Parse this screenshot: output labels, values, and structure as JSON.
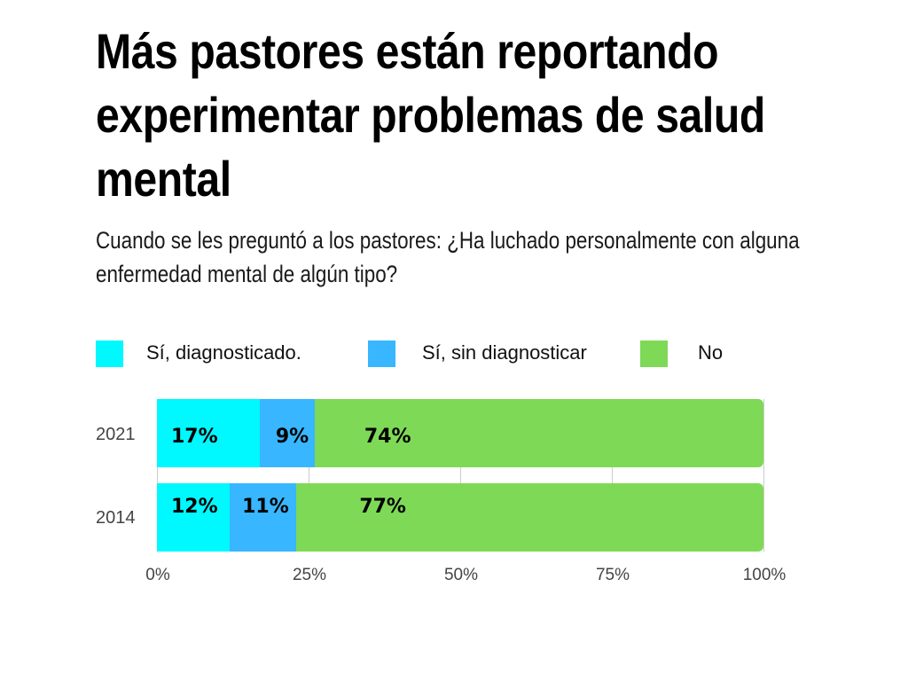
{
  "title": "Más pastores están reportando experimentar problemas de salud mental",
  "subtitle": "Cuando se les preguntó a los pastores: ¿Ha luchado personalmente con alguna enfermedad mental de algún tipo?",
  "chart_data": {
    "type": "bar",
    "orientation": "horizontal",
    "stacked": true,
    "title": "Más pastores están reportando experimentar problemas de salud mental",
    "subtitle": "Cuando se les preguntó a los pastores: ¿Ha luchado personalmente con alguna enfermedad mental de algún tipo?",
    "categories": [
      "2021",
      "2014"
    ],
    "series": [
      {
        "name": "Sí, diagnosticado.",
        "color": "#00f8ff",
        "values": [
          17,
          12
        ],
        "labels": [
          "17%",
          "12%"
        ]
      },
      {
        "name": "Sí, sin diagnosticar",
        "color": "#38b6ff",
        "values": [
          9,
          11
        ],
        "labels": [
          "9%",
          "11%"
        ]
      },
      {
        "name": "No",
        "color": "#7ed957",
        "values": [
          74,
          77
        ],
        "labels": [
          "74%",
          "77%"
        ]
      }
    ],
    "xlim": [
      0,
      100
    ],
    "xticks": [
      "0%",
      "25%",
      "50%",
      "75%",
      "100%"
    ],
    "xlabel": "",
    "ylabel": "",
    "grid": true,
    "legend_position": "top"
  }
}
